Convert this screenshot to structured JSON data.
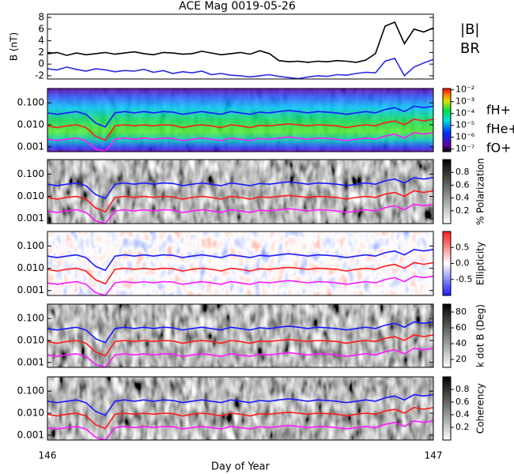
{
  "chart_data": [
    {
      "type": "line",
      "title": "ACE Mag 0019-05-26",
      "ylabel": "B (nT)",
      "x": [
        146,
        146.025,
        146.05,
        146.075,
        146.1,
        146.125,
        146.15,
        146.175,
        146.2,
        146.225,
        146.25,
        146.275,
        146.3,
        146.325,
        146.35,
        146.375,
        146.4,
        146.425,
        146.45,
        146.475,
        146.5,
        146.525,
        146.55,
        146.575,
        146.6,
        146.625,
        146.65,
        146.675,
        146.7,
        146.725,
        146.75,
        146.775,
        146.8,
        146.825,
        146.85,
        146.875,
        146.9,
        146.925,
        146.95,
        146.975,
        147
      ],
      "xlim": [
        146,
        147
      ],
      "ylim": [
        -2.55,
        8.55
      ],
      "yticks": [
        -2,
        0,
        2,
        4,
        6,
        8
      ],
      "series": [
        {
          "name": "|B|",
          "color": "#000000",
          "values": [
            1.8,
            2.0,
            1.5,
            1.9,
            1.6,
            1.8,
            2.0,
            1.7,
            1.9,
            2.1,
            1.8,
            1.6,
            2.0,
            1.9,
            1.7,
            1.8,
            2.2,
            1.9,
            1.6,
            1.8,
            2.0,
            1.7,
            2.3,
            1.8,
            0.6,
            0.4,
            0.5,
            0.3,
            0.5,
            0.4,
            0.6,
            0.5,
            0.3,
            0.7,
            1.8,
            6.5,
            7.2,
            3.5,
            6.0,
            5.5,
            6.2
          ]
        },
        {
          "name": "BR",
          "color": "#2a2ae0",
          "values": [
            -0.8,
            -1.0,
            -0.5,
            -0.9,
            -1.2,
            -0.8,
            -1.0,
            -1.3,
            -1.1,
            -1.2,
            -0.9,
            -1.4,
            -1.1,
            -1.6,
            -1.3,
            -1.5,
            -1.2,
            -1.8,
            -1.6,
            -1.9,
            -2.0,
            -2.2,
            -2.0,
            -1.8,
            -2.1,
            -2.3,
            -2.5,
            -2.2,
            -2.0,
            -2.1,
            -1.8,
            -1.9,
            -1.6,
            -1.4,
            -1.5,
            0.5,
            1.0,
            -2.0,
            -0.5,
            0.2,
            0.8
          ]
        }
      ]
    },
    {
      "type": "spectrogram",
      "style": "rainbow",
      "log": true,
      "ylim": [
        0.0006,
        0.45
      ],
      "yticks": [
        {
          "value": 0.001,
          "label": "0.001"
        },
        {
          "value": 0.01,
          "label": "0.010"
        },
        {
          "value": 0.1,
          "label": "0.100"
        }
      ],
      "x": [
        146,
        146.025,
        146.05,
        146.075,
        146.1,
        146.125,
        146.15,
        146.175,
        146.2,
        146.225,
        146.25,
        146.275,
        146.3,
        146.325,
        146.35,
        146.375,
        146.4,
        146.425,
        146.45,
        146.475,
        146.5,
        146.525,
        146.55,
        146.575,
        146.6,
        146.625,
        146.65,
        146.675,
        146.7,
        146.725,
        146.75,
        146.775,
        146.8,
        146.825,
        146.85,
        146.875,
        146.9,
        146.925,
        146.95,
        146.975,
        147
      ],
      "xlim": [
        146,
        147
      ],
      "colorbar": {
        "log": true,
        "lim": [
          6e-08,
          0.013
        ],
        "ticks": [
          {
            "value": 0.01,
            "label": "10⁻²"
          },
          {
            "value": 0.001,
            "label": "10⁻³"
          },
          {
            "value": 0.0001,
            "label": "10⁻⁴"
          },
          {
            "value": 1e-05,
            "label": "10⁻⁵"
          },
          {
            "value": 1e-06,
            "label": "10⁻⁶"
          },
          {
            "value": 1e-07,
            "label": "10⁻⁷"
          }
        ]
      },
      "series": [
        {
          "name": "fH+",
          "color": "#1a1aff",
          "values": [
            0.035,
            0.03,
            0.035,
            0.04,
            0.03,
            0.012,
            0.008,
            0.035,
            0.04,
            0.035,
            0.04,
            0.035,
            0.04,
            0.038,
            0.03,
            0.035,
            0.04,
            0.035,
            0.03,
            0.04,
            0.035,
            0.03,
            0.038,
            0.035,
            0.04,
            0.045,
            0.04,
            0.035,
            0.04,
            0.038,
            0.035,
            0.03,
            0.035,
            0.04,
            0.035,
            0.05,
            0.06,
            0.04,
            0.07,
            0.06,
            0.07
          ]
        },
        {
          "name": "fHe+",
          "color": "#ff1a1a",
          "values": [
            0.009,
            0.0075,
            0.009,
            0.01,
            0.0075,
            0.003,
            0.002,
            0.009,
            0.01,
            0.009,
            0.01,
            0.009,
            0.01,
            0.0095,
            0.0075,
            0.009,
            0.01,
            0.009,
            0.0075,
            0.01,
            0.009,
            0.0075,
            0.0095,
            0.009,
            0.01,
            0.011,
            0.01,
            0.009,
            0.01,
            0.0095,
            0.009,
            0.0075,
            0.009,
            0.01,
            0.009,
            0.0125,
            0.015,
            0.01,
            0.018,
            0.015,
            0.018
          ]
        },
        {
          "name": "fO+",
          "color": "#ff1aff",
          "values": [
            0.0022,
            0.0019,
            0.0022,
            0.0025,
            0.0019,
            0.0008,
            0.0006,
            0.0022,
            0.0025,
            0.0022,
            0.0025,
            0.0022,
            0.0025,
            0.0024,
            0.0019,
            0.0022,
            0.0025,
            0.0022,
            0.0019,
            0.0025,
            0.0022,
            0.0019,
            0.0024,
            0.0022,
            0.0025,
            0.0028,
            0.0025,
            0.0022,
            0.0025,
            0.0024,
            0.0022,
            0.0019,
            0.0022,
            0.0025,
            0.0022,
            0.0031,
            0.0038,
            0.0025,
            0.0044,
            0.0038,
            0.0044
          ]
        }
      ]
    },
    {
      "type": "spectrogram",
      "style": "gray",
      "log": true,
      "ylim": [
        0.0006,
        0.45
      ],
      "yticks": [
        {
          "value": 0.001,
          "label": "0.001"
        },
        {
          "value": 0.01,
          "label": "0.010"
        },
        {
          "value": 0.1,
          "label": "0.100"
        }
      ],
      "colorbar": {
        "label": "% Polarization",
        "lim": [
          0,
          1
        ],
        "ticks": [
          0.2,
          0.4,
          0.6,
          0.8
        ]
      }
    },
    {
      "type": "spectrogram",
      "style": "redblue",
      "log": true,
      "ylim": [
        0.0006,
        0.45
      ],
      "yticks": [
        {
          "value": 0.001,
          "label": "0.001"
        },
        {
          "value": 0.01,
          "label": "0.010"
        },
        {
          "value": 0.1,
          "label": "0.100"
        }
      ],
      "colorbar": {
        "label": "Ellipticity",
        "lim": [
          -1,
          1
        ],
        "ticks": [
          {
            "value": -0.5,
            "label": "-0.5"
          },
          {
            "value": 0,
            "label": "0.0"
          },
          {
            "value": 0.5,
            "label": "0.5"
          }
        ]
      }
    },
    {
      "type": "spectrogram",
      "style": "gray",
      "log": true,
      "ylim": [
        0.0006,
        0.45
      ],
      "yticks": [
        {
          "value": 0.001,
          "label": "0.001"
        },
        {
          "value": 0.01,
          "label": "0.010"
        },
        {
          "value": 0.1,
          "label": "0.100"
        }
      ],
      "colorbar": {
        "label": "k dot B (Deg)",
        "lim": [
          10,
          90
        ],
        "ticks": [
          20,
          40,
          60,
          80
        ]
      }
    },
    {
      "type": "spectrogram",
      "style": "gray",
      "log": true,
      "ylim": [
        0.0006,
        0.45
      ],
      "yticks": [
        {
          "value": 0.001,
          "label": "0.001"
        },
        {
          "value": 0.01,
          "label": "0.010"
        },
        {
          "value": 0.1,
          "label": "0.100"
        }
      ],
      "colorbar": {
        "label": "Coherency",
        "lim": [
          0,
          1
        ],
        "ticks": [
          0.2,
          0.4,
          0.6,
          0.8
        ]
      },
      "xlabel": "Day of Year",
      "xlim": [
        146,
        147
      ],
      "xticks": [
        146,
        147
      ]
    }
  ]
}
